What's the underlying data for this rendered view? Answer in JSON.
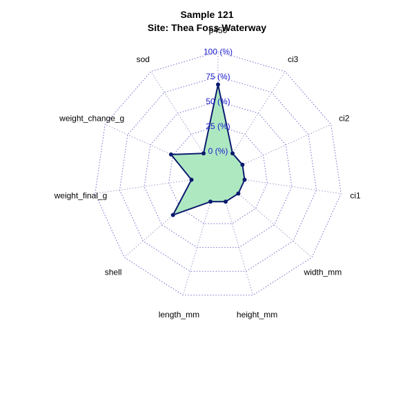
{
  "chart_data": {
    "type": "radar",
    "title": "Sample 121",
    "subtitle": "Site: Thea Foss Waterway",
    "axes": [
      "p450",
      "ci3",
      "ci2",
      "ci1",
      "width_mm",
      "height_mm",
      "length_mm",
      "shell",
      "weight_final_g",
      "weight_change_g",
      "sod"
    ],
    "ticks": [
      "0 (%)",
      "25 (%)",
      "50 (%)",
      "75 (%)",
      "100 (%)"
    ],
    "tick_values": [
      0,
      25,
      50,
      75,
      100
    ],
    "range": [
      -25,
      100
    ],
    "series": [
      {
        "values": [
          67,
          2,
          2,
          2,
          2,
          2,
          2,
          35,
          2,
          27,
          2
        ]
      }
    ],
    "colors": {
      "fill": "#aee8c1",
      "line": "#0b1a6e",
      "grid": "#6a6ad0",
      "tick_text": "#1a1acd"
    }
  }
}
